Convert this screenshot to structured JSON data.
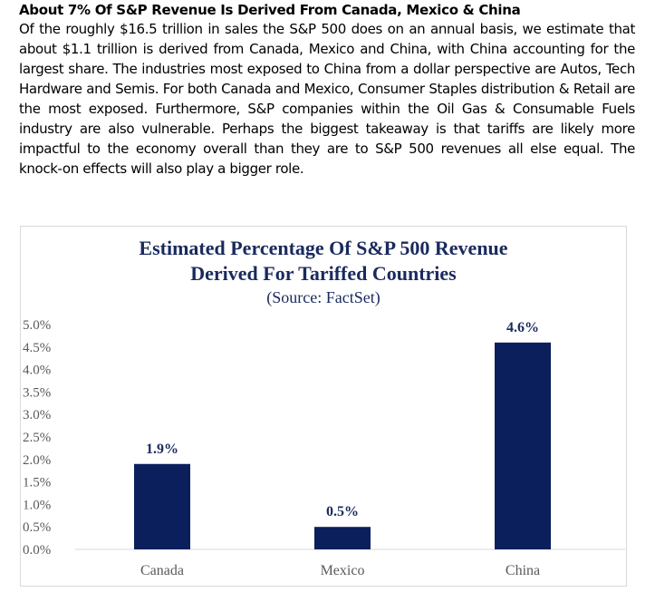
{
  "article": {
    "heading": "About 7% Of S&P Revenue Is Derived From Canada, Mexico & China",
    "body": "Of the roughly $16.5 trillion in sales the S&P 500 does on an annual basis, we estimate that about $1.1 trillion is derived from Canada, Mexico and China, with China accounting for the largest share. The industries most exposed to China from a dollar perspective are Autos, Tech Hardware and Semis.  For both Canada and Mexico, Consumer Staples distribution & Retail are the most exposed. Furthermore, S&P companies within the Oil Gas & Consumable Fuels industry are also vulnerable. Perhaps the biggest takeaway is that tariffs are likely more impactful to the economy overall than they are to S&P 500 revenues all else equal. The knock-on effects will also play a bigger role."
  },
  "chart_data": {
    "type": "bar",
    "title_line1": "Estimated Percentage Of S&P 500 Revenue",
    "title_line2": "Derived For Tariffed Countries",
    "subtitle": "(Source: FactSet)",
    "categories": [
      "Canada",
      "Mexico",
      "China"
    ],
    "values": [
      1.9,
      0.5,
      4.6
    ],
    "data_labels": [
      "1.9%",
      "0.5%",
      "4.6%"
    ],
    "yticks": [
      "0.0%",
      "0.5%",
      "1.0%",
      "1.5%",
      "2.0%",
      "2.5%",
      "3.0%",
      "3.5%",
      "4.0%",
      "4.5%",
      "5.0%"
    ],
    "ylim": [
      0,
      5
    ],
    "xlabel": "",
    "ylabel": "",
    "grid": false,
    "colors": {
      "bar": "#0b1f5c",
      "title": "#1a2a5e",
      "axis_text": "#595959",
      "axis_line": "#d9d9d9"
    }
  }
}
